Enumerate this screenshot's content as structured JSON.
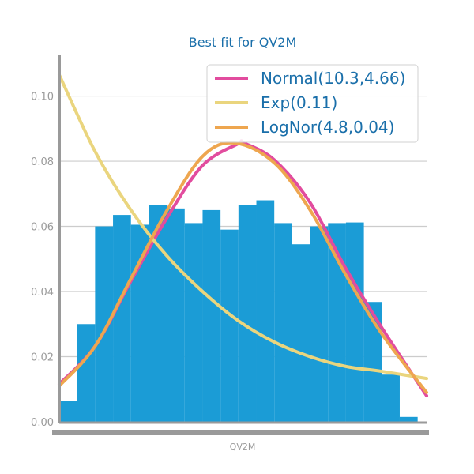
{
  "chart_data": {
    "type": "bar",
    "title": "Best fit for QV2M",
    "xlabel": "QV2M",
    "ylabel": "",
    "xlim": [
      0,
      20.5
    ],
    "ylim": [
      0,
      0.1125
    ],
    "yticks": [
      0.0,
      0.02,
      0.04,
      0.06,
      0.08,
      0.1
    ],
    "ytick_labels": [
      "0.00",
      "0.02",
      "0.04",
      "0.06",
      "0.08",
      "0.10"
    ],
    "grid": "horizontal",
    "legend_position": "top-right",
    "histogram": {
      "bin_edges": [
        0,
        1,
        2,
        3,
        4,
        5,
        6,
        7,
        8,
        9,
        10,
        11,
        12,
        13,
        14,
        15,
        16,
        17,
        18,
        19,
        20,
        21
      ],
      "values": [
        0.0065,
        0.03,
        0.06,
        0.0635,
        0.0605,
        0.0665,
        0.0655,
        0.061,
        0.065,
        0.059,
        0.0665,
        0.068,
        0.061,
        0.0545,
        0.06,
        0.061,
        0.0612,
        0.0368,
        0.0145,
        0.0015,
        0.0
      ],
      "color": "#1b9cd6"
    },
    "series": [
      {
        "name": "Normal(10.3,4.66)",
        "type": "line",
        "color": "#e24c9e",
        "x": [
          0,
          2,
          4,
          6,
          8,
          10,
          10.3,
          12,
          14,
          16,
          18,
          20.5
        ],
        "y": [
          0.0116,
          0.0232,
          0.0432,
          0.0625,
          0.0787,
          0.0854,
          0.0856,
          0.0804,
          0.0673,
          0.047,
          0.0289,
          0.008
        ]
      },
      {
        "name": "Exp(0.11)",
        "type": "line",
        "color": "#ead57e",
        "x": [
          0,
          2,
          4,
          6,
          8,
          10,
          12,
          14,
          16,
          18,
          20.5
        ],
        "y": [
          0.1065,
          0.083,
          0.065,
          0.051,
          0.04,
          0.031,
          0.0245,
          0.02,
          0.017,
          0.0155,
          0.0133
        ]
      },
      {
        "name": "LogNor(4.8,0.04)",
        "type": "line",
        "color": "#eea64f",
        "x": [
          0,
          2,
          4,
          6,
          8,
          9.8,
          12,
          14,
          16,
          18,
          20.5
        ],
        "y": [
          0.011,
          0.0232,
          0.044,
          0.0648,
          0.0815,
          0.0856,
          0.0795,
          0.065,
          0.045,
          0.027,
          0.009
        ]
      }
    ]
  },
  "colors": {
    "title": "#1a6faa",
    "legend_text": "#1a6faa",
    "axis": "#9a9a9a",
    "grid": "#cccccc"
  }
}
